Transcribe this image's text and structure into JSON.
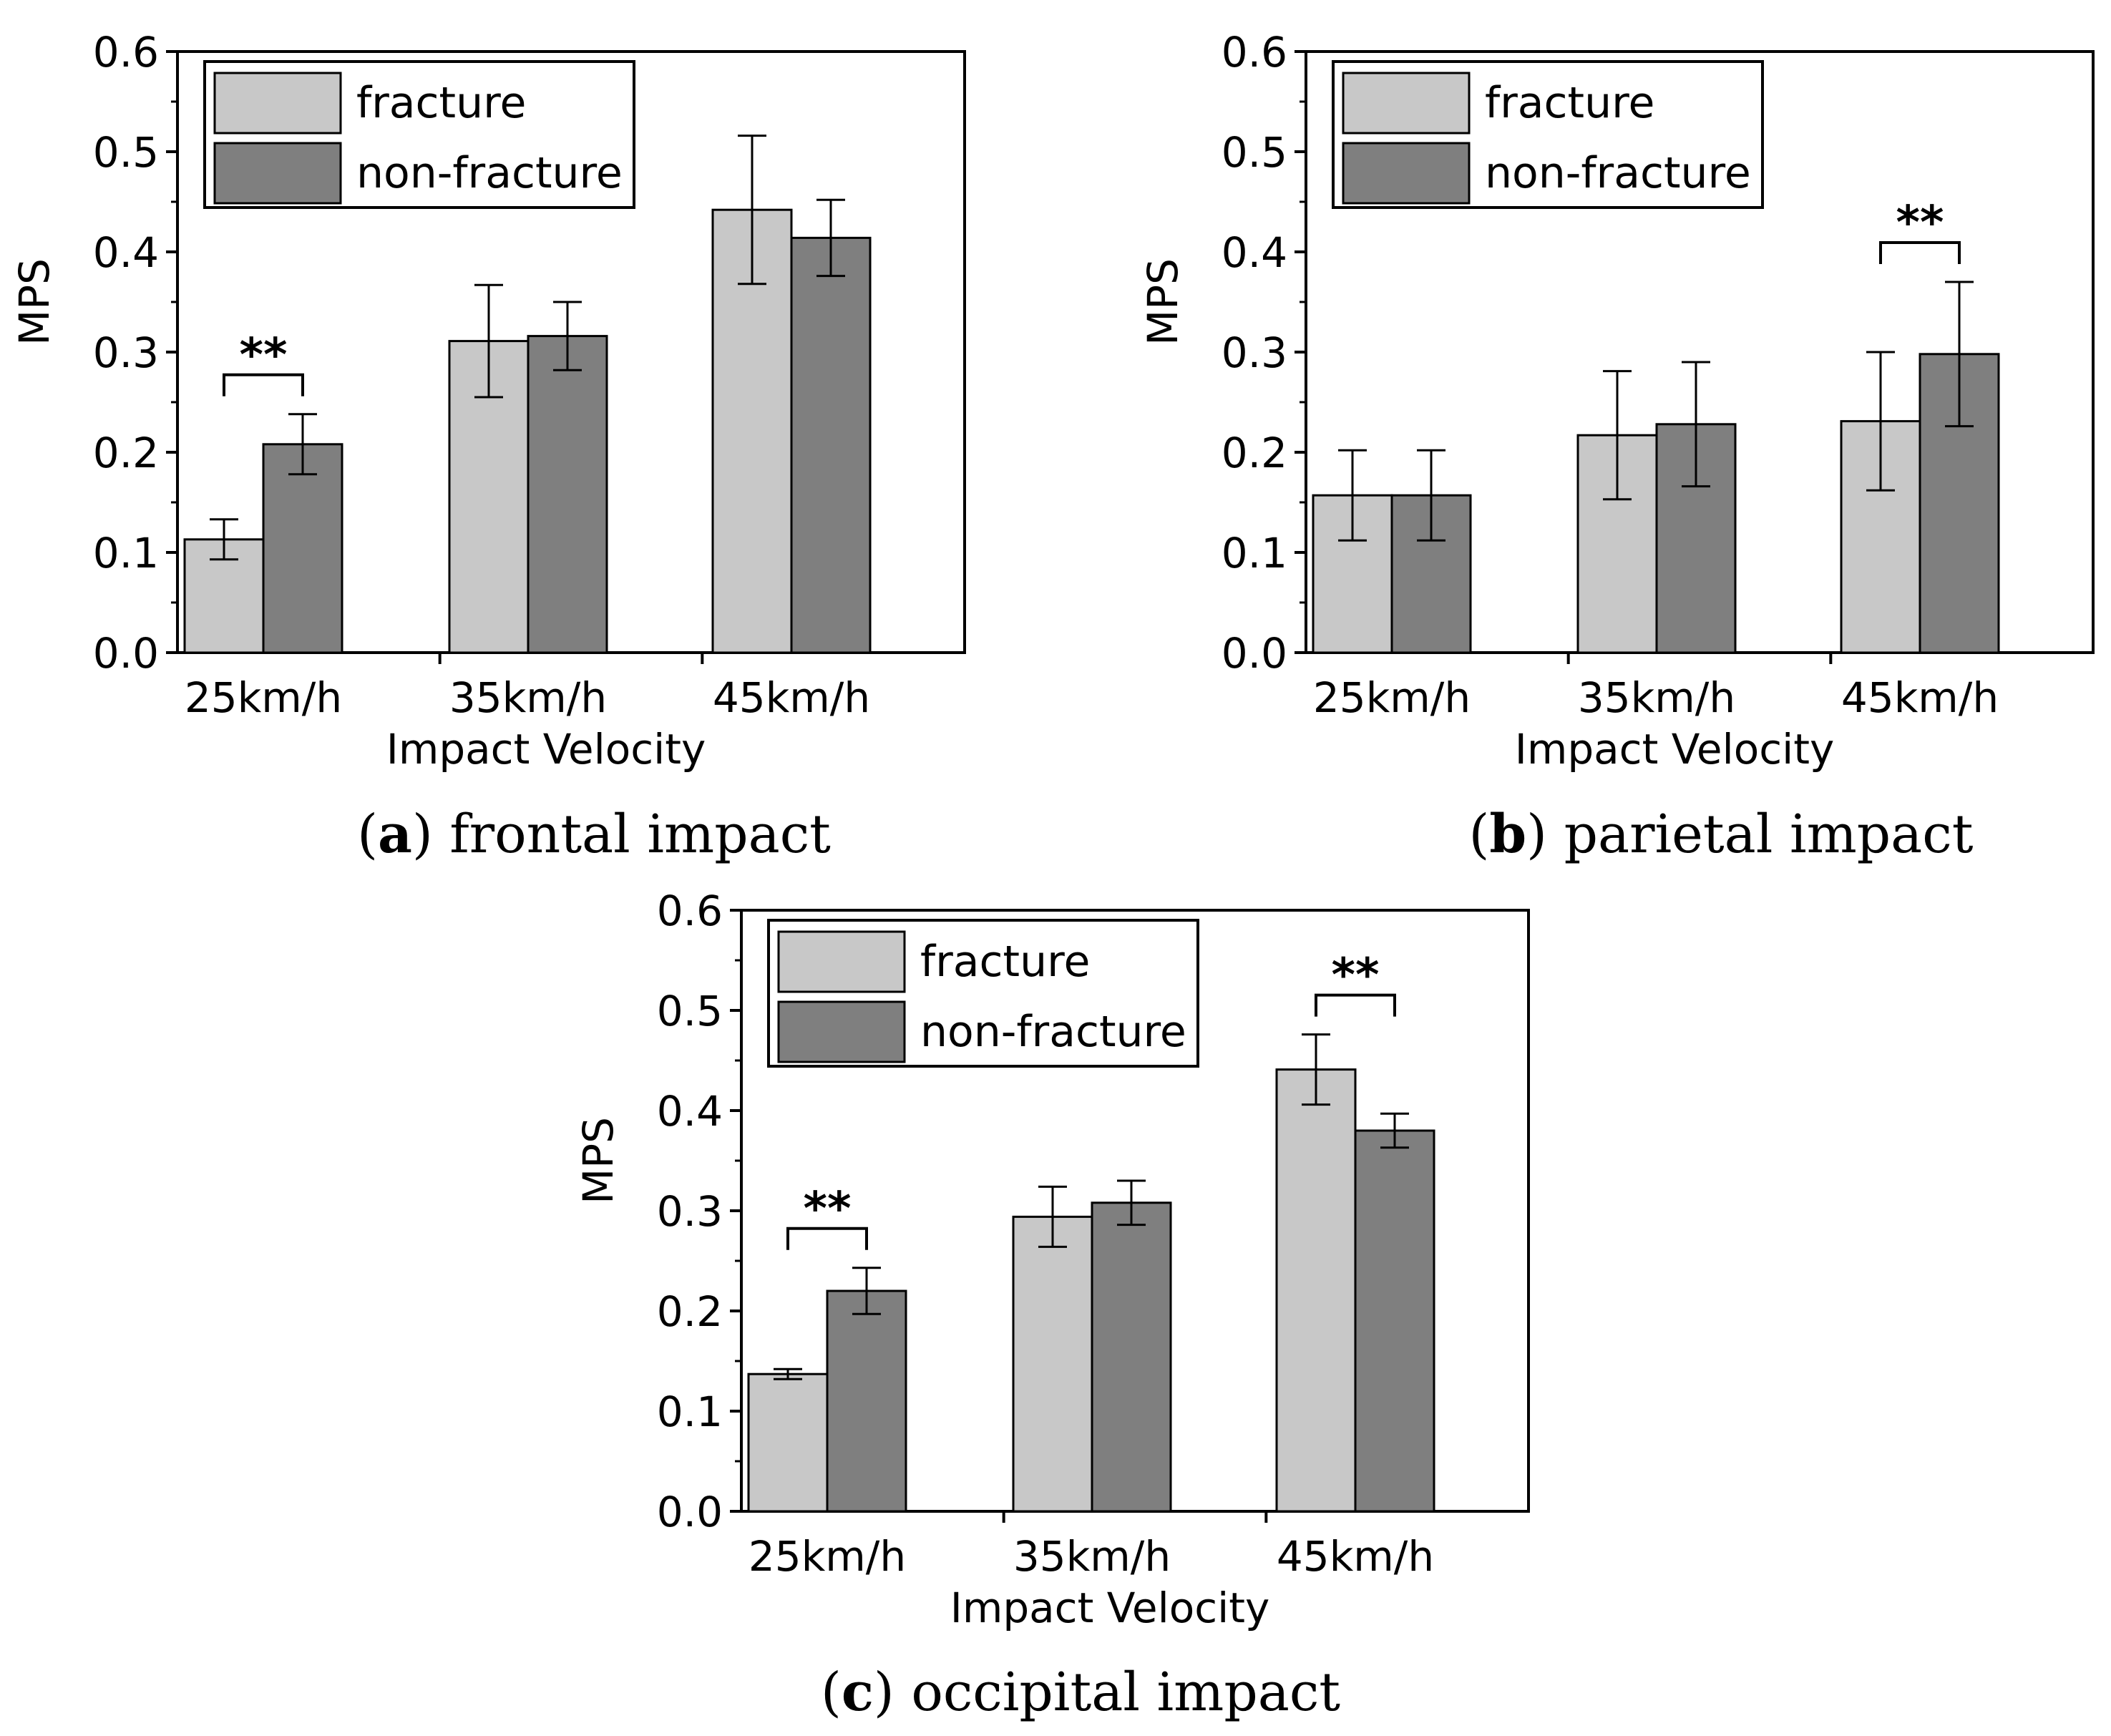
{
  "chart_data": [
    {
      "type": "bar",
      "panel": "a",
      "caption_letter": "a",
      "caption_text": "frontal impact",
      "categories": [
        "25km/h",
        "35km/h",
        "45km/h"
      ],
      "xlabel": "Impact Velocity",
      "ylabel": "MPS",
      "ylim": [
        0,
        0.6
      ],
      "yticks": [
        "0.0",
        "0.1",
        "0.2",
        "0.3",
        "0.4",
        "0.5",
        "0.6"
      ],
      "legend_position": "top-left",
      "series": [
        {
          "name": "fracture",
          "color": "#c8c8c8",
          "values": [
            0.113,
            0.311,
            0.442
          ],
          "errors": [
            0.02,
            0.056,
            0.074
          ]
        },
        {
          "name": "non-fracture",
          "color": "#7f7f7f",
          "values": [
            0.208,
            0.316,
            0.414
          ],
          "errors": [
            0.03,
            0.034,
            0.038
          ]
        }
      ],
      "significance": [
        {
          "category_index": 0,
          "label": "**"
        }
      ]
    },
    {
      "type": "bar",
      "panel": "b",
      "caption_letter": "b",
      "caption_text": "parietal impact",
      "categories": [
        "25km/h",
        "35km/h",
        "45km/h"
      ],
      "xlabel": "Impact Velocity",
      "ylabel": "MPS",
      "ylim": [
        0,
        0.6
      ],
      "yticks": [
        "0.0",
        "0.1",
        "0.2",
        "0.3",
        "0.4",
        "0.5",
        "0.6"
      ],
      "legend_position": "top-left",
      "series": [
        {
          "name": "fracture",
          "color": "#c8c8c8",
          "values": [
            0.157,
            0.217,
            0.231
          ],
          "errors": [
            0.045,
            0.064,
            0.069
          ]
        },
        {
          "name": "non-fracture",
          "color": "#7f7f7f",
          "values": [
            0.157,
            0.228,
            0.298
          ],
          "errors": [
            0.045,
            0.062,
            0.072
          ]
        }
      ],
      "significance": [
        {
          "category_index": 2,
          "label": "**"
        }
      ]
    },
    {
      "type": "bar",
      "panel": "c",
      "caption_letter": "c",
      "caption_text": "occipital impact",
      "categories": [
        "25km/h",
        "35km/h",
        "45km/h"
      ],
      "xlabel": "Impact Velocity",
      "ylabel": "MPS",
      "ylim": [
        0,
        0.6
      ],
      "yticks": [
        "0.0",
        "0.1",
        "0.2",
        "0.3",
        "0.4",
        "0.5",
        "0.6"
      ],
      "legend_position": "top-left",
      "series": [
        {
          "name": "fracture",
          "color": "#c8c8c8",
          "values": [
            0.137,
            0.294,
            0.441
          ],
          "errors": [
            0.005,
            0.03,
            0.035
          ]
        },
        {
          "name": "non-fracture",
          "color": "#7f7f7f",
          "values": [
            0.22,
            0.308,
            0.38
          ],
          "errors": [
            0.023,
            0.022,
            0.017
          ]
        }
      ],
      "significance": [
        {
          "category_index": 0,
          "label": "**"
        },
        {
          "category_index": 2,
          "label": "**"
        }
      ]
    }
  ]
}
